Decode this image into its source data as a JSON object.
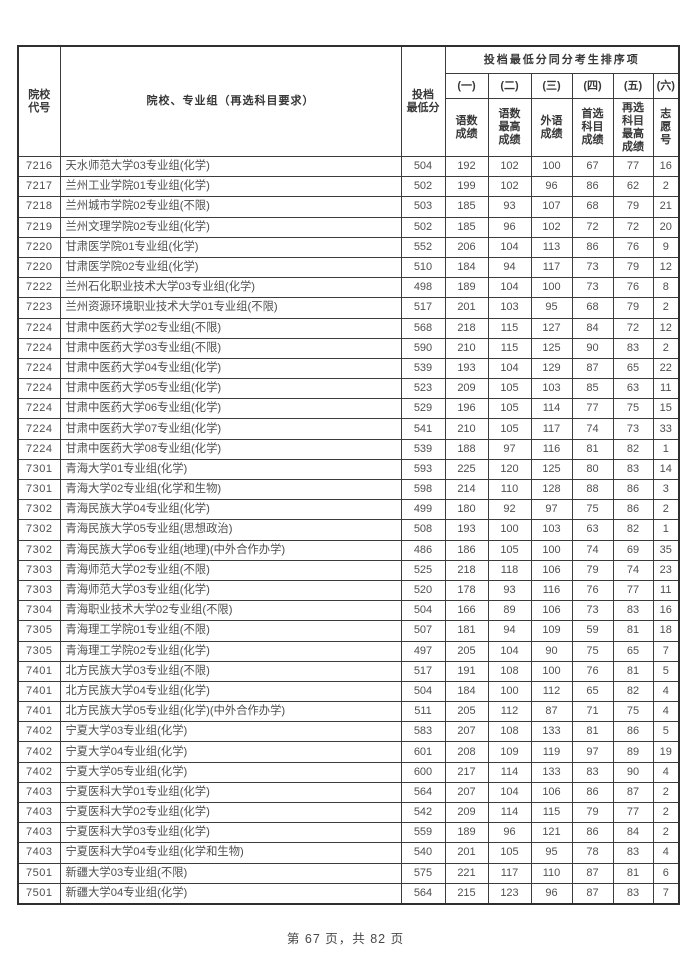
{
  "table": {
    "headers": {
      "college_code": "院校\n代号",
      "college_group": "院校、专业组（再选科目要求）",
      "min_score": "投档\n最低分",
      "sort_title": "投档最低分同分考生排序项",
      "sort_columns": [
        {
          "ordinal": "(一)",
          "label": "语数\n成绩"
        },
        {
          "ordinal": "(二)",
          "label": "语数\n最高\n成绩"
        },
        {
          "ordinal": "(三)",
          "label": "外语\n成绩"
        },
        {
          "ordinal": "(四)",
          "label": "首选\n科目\n成绩"
        },
        {
          "ordinal": "(五)",
          "label": "再选\n科目\n最高\n成绩"
        },
        {
          "ordinal": "(六)",
          "label": "志\n愿\n号"
        }
      ]
    },
    "rows": [
      [
        "7216",
        "天水师范大学03专业组(化学)",
        504,
        192,
        102,
        100,
        67,
        77,
        16
      ],
      [
        "7217",
        "兰州工业学院01专业组(化学)",
        502,
        199,
        102,
        96,
        86,
        62,
        2
      ],
      [
        "7218",
        "兰州城市学院02专业组(不限)",
        503,
        185,
        93,
        107,
        68,
        79,
        21
      ],
      [
        "7219",
        "兰州文理学院02专业组(化学)",
        502,
        185,
        96,
        102,
        72,
        72,
        20
      ],
      [
        "7220",
        "甘肃医学院01专业组(化学)",
        552,
        206,
        104,
        113,
        86,
        76,
        9
      ],
      [
        "7220",
        "甘肃医学院02专业组(化学)",
        510,
        184,
        94,
        117,
        73,
        79,
        12
      ],
      [
        "7222",
        "兰州石化职业技术大学03专业组(化学)",
        498,
        189,
        104,
        100,
        73,
        76,
        8
      ],
      [
        "7223",
        "兰州资源环境职业技术大学01专业组(不限)",
        517,
        201,
        103,
        95,
        68,
        79,
        2
      ],
      [
        "7224",
        "甘肃中医药大学02专业组(不限)",
        568,
        218,
        115,
        127,
        84,
        72,
        12
      ],
      [
        "7224",
        "甘肃中医药大学03专业组(不限)",
        590,
        210,
        115,
        125,
        90,
        83,
        2
      ],
      [
        "7224",
        "甘肃中医药大学04专业组(化学)",
        539,
        193,
        104,
        129,
        87,
        65,
        22
      ],
      [
        "7224",
        "甘肃中医药大学05专业组(化学)",
        523,
        209,
        105,
        103,
        85,
        63,
        11
      ],
      [
        "7224",
        "甘肃中医药大学06专业组(化学)",
        529,
        196,
        105,
        114,
        77,
        75,
        15
      ],
      [
        "7224",
        "甘肃中医药大学07专业组(化学)",
        541,
        210,
        105,
        117,
        74,
        73,
        33
      ],
      [
        "7224",
        "甘肃中医药大学08专业组(化学)",
        539,
        188,
        97,
        116,
        81,
        82,
        1
      ],
      [
        "7301",
        "青海大学01专业组(化学)",
        593,
        225,
        120,
        125,
        80,
        83,
        14
      ],
      [
        "7301",
        "青海大学02专业组(化学和生物)",
        598,
        214,
        110,
        128,
        88,
        86,
        3
      ],
      [
        "7302",
        "青海民族大学04专业组(化学)",
        499,
        180,
        92,
        97,
        75,
        86,
        2
      ],
      [
        "7302",
        "青海民族大学05专业组(思想政治)",
        508,
        193,
        100,
        103,
        63,
        82,
        1
      ],
      [
        "7302",
        "青海民族大学06专业组(地理)(中外合作办学)",
        486,
        186,
        105,
        100,
        74,
        69,
        35
      ],
      [
        "7303",
        "青海师范大学02专业组(不限)",
        525,
        218,
        118,
        106,
        79,
        74,
        23
      ],
      [
        "7303",
        "青海师范大学03专业组(化学)",
        520,
        178,
        93,
        116,
        76,
        77,
        11
      ],
      [
        "7304",
        "青海职业技术大学02专业组(不限)",
        504,
        166,
        89,
        106,
        73,
        83,
        16
      ],
      [
        "7305",
        "青海理工学院01专业组(不限)",
        507,
        181,
        94,
        109,
        59,
        81,
        18
      ],
      [
        "7305",
        "青海理工学院02专业组(化学)",
        497,
        205,
        104,
        90,
        75,
        65,
        7
      ],
      [
        "7401",
        "北方民族大学03专业组(不限)",
        517,
        191,
        108,
        100,
        76,
        81,
        5
      ],
      [
        "7401",
        "北方民族大学04专业组(化学)",
        504,
        184,
        100,
        112,
        65,
        82,
        4
      ],
      [
        "7401",
        "北方民族大学05专业组(化学)(中外合作办学)",
        511,
        205,
        112,
        87,
        71,
        75,
        4
      ],
      [
        "7402",
        "宁夏大学03专业组(化学)",
        583,
        207,
        108,
        133,
        81,
        86,
        5
      ],
      [
        "7402",
        "宁夏大学04专业组(化学)",
        601,
        208,
        109,
        119,
        97,
        89,
        19
      ],
      [
        "7402",
        "宁夏大学05专业组(化学)",
        600,
        217,
        114,
        133,
        83,
        90,
        4
      ],
      [
        "7403",
        "宁夏医科大学01专业组(化学)",
        564,
        207,
        104,
        106,
        86,
        87,
        2
      ],
      [
        "7403",
        "宁夏医科大学02专业组(化学)",
        542,
        209,
        114,
        115,
        79,
        77,
        2
      ],
      [
        "7403",
        "宁夏医科大学03专业组(化学)",
        559,
        189,
        96,
        121,
        86,
        84,
        2
      ],
      [
        "7403",
        "宁夏医科大学04专业组(化学和生物)",
        540,
        201,
        105,
        95,
        78,
        83,
        4
      ],
      [
        "7501",
        "新疆大学03专业组(不限)",
        575,
        221,
        117,
        110,
        87,
        81,
        6
      ],
      [
        "7501",
        "新疆大学04专业组(化学)",
        564,
        215,
        123,
        96,
        87,
        83,
        7
      ]
    ]
  },
  "footer": {
    "page_info": "第 67 页，共 82 页"
  }
}
